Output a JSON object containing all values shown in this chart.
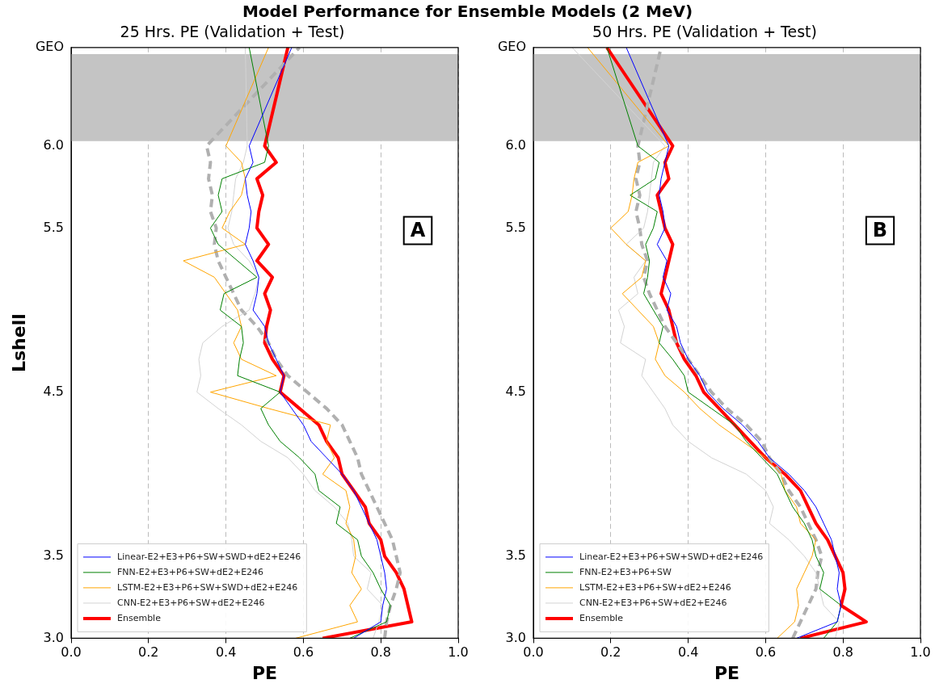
{
  "chart_data": [
    {
      "type": "line",
      "title": "Model Performance for Ensemble Models (2 MeV)",
      "subtitle": "25 Hrs. PE (Validation + Test)",
      "xlabel": "PE",
      "ylabel": "Lshell",
      "annotations": [
        "A"
      ],
      "xlim": [
        0,
        1
      ],
      "xticks": [
        {
          "value": 0,
          "label": "0.0"
        },
        {
          "value": 0.2,
          "label": "0.2"
        },
        {
          "value": 0.4,
          "label": "0.4"
        },
        {
          "value": 0.6,
          "label": "0.6"
        },
        {
          "value": 0.8,
          "label": "0.8"
        },
        {
          "value": 1,
          "label": "1.0"
        }
      ],
      "ylim": [
        3,
        6.6
      ],
      "yticks": [
        {
          "value": 3,
          "label": "3.0"
        },
        3.5,
        4.5,
        5.5,
        {
          "value": 6,
          "label": "6.0"
        },
        {
          "value": 6.6,
          "label": "GEO"
        }
      ],
      "grid": "x",
      "legend": "bottom left",
      "marker": "none",
      "bands": [
        {
          "axis": "y",
          "from": 6.03,
          "to": 6.56,
          "color": "#c4c4c4"
        }
      ],
      "series": [
        {
          "name": "Linear-E2+E3+P6+SW+SWD+dE2+E246",
          "color": "#0000ff",
          "x": [
            0.73,
            0.8,
            0.805,
            0.815,
            0.81,
            0.8,
            0.79,
            0.77,
            0.75,
            0.73,
            0.7,
            0.66,
            0.62,
            0.6,
            0.57,
            0.54,
            0.55,
            0.53,
            0.51,
            0.5,
            0.47,
            0.48,
            0.485,
            0.47,
            0.45,
            0.46,
            0.465,
            0.455,
            0.45,
            0.47,
            0.46,
            0.57
          ],
          "values": [
            3,
            3.1,
            3.2,
            3.3,
            3.4,
            3.5,
            3.6,
            3.7,
            3.8,
            3.9,
            4,
            4.1,
            4.2,
            4.3,
            4.4,
            4.5,
            4.6,
            4.7,
            4.8,
            4.9,
            5,
            5.1,
            5.2,
            5.3,
            5.4,
            5.5,
            5.6,
            5.7,
            5.8,
            5.9,
            6,
            6.6
          ]
        },
        {
          "name": "FNN-E2+E3+P6+SW+dE2+E246",
          "color": "#008000",
          "x": [
            0.72,
            0.815,
            0.825,
            0.8,
            0.78,
            0.75,
            0.74,
            0.685,
            0.695,
            0.64,
            0.63,
            0.59,
            0.54,
            0.51,
            0.49,
            0.54,
            0.43,
            0.435,
            0.445,
            0.44,
            0.385,
            0.395,
            0.48,
            0.43,
            0.38,
            0.36,
            0.39,
            0.38,
            0.39,
            0.5,
            0.51,
            0.46
          ],
          "values": [
            3,
            3.1,
            3.2,
            3.3,
            3.4,
            3.5,
            3.6,
            3.7,
            3.8,
            3.9,
            4,
            4.1,
            4.2,
            4.3,
            4.4,
            4.5,
            4.6,
            4.7,
            4.8,
            4.9,
            5,
            5.1,
            5.2,
            5.3,
            5.4,
            5.5,
            5.6,
            5.7,
            5.8,
            5.9,
            6,
            6.6
          ]
        },
        {
          "name": "LSTM-E2+E3+P6+SW+SWD+dE2+E246",
          "color": "#ffa500",
          "x": [
            0.58,
            0.74,
            0.72,
            0.75,
            0.725,
            0.735,
            0.73,
            0.71,
            0.72,
            0.71,
            0.65,
            0.68,
            0.66,
            0.67,
            0.51,
            0.36,
            0.53,
            0.44,
            0.42,
            0.44,
            0.43,
            0.4,
            0.37,
            0.29,
            0.45,
            0.39,
            0.41,
            0.44,
            0.45,
            0.44,
            0.4,
            0.51
          ],
          "values": [
            3,
            3.1,
            3.2,
            3.3,
            3.4,
            3.5,
            3.6,
            3.7,
            3.8,
            3.9,
            4,
            4.1,
            4.2,
            4.3,
            4.4,
            4.5,
            4.6,
            4.7,
            4.8,
            4.9,
            5,
            5.1,
            5.2,
            5.3,
            5.4,
            5.5,
            5.6,
            5.7,
            5.8,
            5.9,
            6,
            6.6
          ]
        },
        {
          "name": "CNN-E2+E3+P6+SW+dE2+E246",
          "color": "#d3d3d3",
          "x": [
            0.78,
            0.795,
            0.805,
            0.765,
            0.775,
            0.73,
            0.725,
            0.715,
            0.68,
            0.63,
            0.6,
            0.56,
            0.49,
            0.44,
            0.38,
            0.325,
            0.335,
            0.33,
            0.34,
            0.39,
            0.46,
            0.475,
            0.485,
            0.46,
            0.42,
            0.405,
            0.415,
            0.42,
            0.425,
            0.445,
            0.455,
            0.45
          ],
          "values": [
            3,
            3.1,
            3.2,
            3.3,
            3.4,
            3.5,
            3.6,
            3.7,
            3.8,
            3.9,
            4,
            4.1,
            4.2,
            4.3,
            4.4,
            4.5,
            4.6,
            4.7,
            4.8,
            4.9,
            5,
            5.1,
            5.2,
            5.3,
            5.4,
            5.5,
            5.6,
            5.7,
            5.8,
            5.9,
            6,
            6.6
          ]
        },
        {
          "color": "#b0b0b0",
          "line_style": "dashed",
          "x": [
            0.81,
            0.815,
            0.825,
            0.84,
            0.85,
            0.84,
            0.83,
            0.81,
            0.79,
            0.77,
            0.75,
            0.74,
            0.72,
            0.7,
            0.66,
            0.61,
            0.56,
            0.53,
            0.51,
            0.48,
            0.44,
            0.42,
            0.4,
            0.38,
            0.37,
            0.375,
            0.36,
            0.365,
            0.355,
            0.36,
            0.35,
            0.59
          ],
          "values": [
            3,
            3.1,
            3.2,
            3.3,
            3.4,
            3.5,
            3.6,
            3.7,
            3.8,
            3.9,
            4,
            4.1,
            4.2,
            4.3,
            4.4,
            4.5,
            4.6,
            4.7,
            4.8,
            4.9,
            5,
            5.1,
            5.2,
            5.3,
            5.4,
            5.5,
            5.6,
            5.7,
            5.8,
            5.9,
            6,
            6.6
          ]
        },
        {
          "name": "Ensemble",
          "color": "#ff0000",
          "x": [
            0.65,
            0.88,
            0.87,
            0.86,
            0.84,
            0.81,
            0.8,
            0.77,
            0.76,
            0.73,
            0.7,
            0.69,
            0.66,
            0.64,
            0.59,
            0.54,
            0.55,
            0.52,
            0.5,
            0.505,
            0.515,
            0.5,
            0.52,
            0.48,
            0.51,
            0.48,
            0.485,
            0.495,
            0.48,
            0.53,
            0.5,
            0.56
          ],
          "values": [
            3,
            3.1,
            3.2,
            3.3,
            3.4,
            3.5,
            3.6,
            3.7,
            3.8,
            3.9,
            4,
            4.1,
            4.2,
            4.3,
            4.4,
            4.5,
            4.6,
            4.7,
            4.8,
            4.9,
            5,
            5.1,
            5.2,
            5.3,
            5.4,
            5.5,
            5.6,
            5.7,
            5.8,
            5.9,
            6,
            6.6
          ]
        }
      ]
    },
    {
      "type": "line",
      "subtitle": "50 Hrs. PE (Validation + Test)",
      "xlabel": "PE",
      "annotations": [
        "B"
      ],
      "xlim": [
        0,
        1
      ],
      "xticks": [
        {
          "value": 0,
          "label": "0.0"
        },
        {
          "value": 0.2,
          "label": "0.2"
        },
        {
          "value": 0.4,
          "label": "0.4"
        },
        {
          "value": 0.6,
          "label": "0.6"
        },
        {
          "value": 0.8,
          "label": "0.8"
        },
        {
          "value": 1,
          "label": "1.0"
        }
      ],
      "ylim": [
        3,
        6.6
      ],
      "yticks": [
        {
          "value": 3,
          "label": "3.0"
        },
        3.5,
        4.5,
        5.5,
        {
          "value": 6,
          "label": "6.0"
        },
        {
          "value": 6.6,
          "label": "GEO"
        }
      ],
      "grid": "x",
      "legend": "bottom left",
      "marker": "none",
      "bands": [
        {
          "axis": "y",
          "from": 6.03,
          "to": 6.56,
          "color": "#c4c4c4"
        }
      ],
      "series": [
        {
          "name": "Linear-E2+E3+P6+SW+SWD+dE2+E246",
          "color": "#0000ff",
          "x": [
            0.68,
            0.785,
            0.795,
            0.785,
            0.79,
            0.78,
            0.77,
            0.75,
            0.73,
            0.7,
            0.66,
            0.61,
            0.58,
            0.54,
            0.49,
            0.45,
            0.43,
            0.4,
            0.38,
            0.37,
            0.345,
            0.355,
            0.335,
            0.345,
            0.32,
            0.34,
            0.335,
            0.325,
            0.33,
            0.34,
            0.35,
            0.24
          ],
          "values": [
            3,
            3.1,
            3.2,
            3.3,
            3.4,
            3.5,
            3.6,
            3.7,
            3.8,
            3.9,
            4,
            4.1,
            4.2,
            4.3,
            4.4,
            4.5,
            4.6,
            4.7,
            4.8,
            4.9,
            5,
            5.1,
            5.2,
            5.3,
            5.4,
            5.5,
            5.6,
            5.7,
            5.8,
            5.9,
            6,
            6.6
          ]
        },
        {
          "name": "FNN-E2+E3+P6+SW",
          "color": "#008000",
          "x": [
            0.75,
            0.785,
            0.795,
            0.74,
            0.75,
            0.73,
            0.72,
            0.7,
            0.67,
            0.65,
            0.63,
            0.59,
            0.55,
            0.52,
            0.46,
            0.4,
            0.39,
            0.36,
            0.325,
            0.335,
            0.31,
            0.285,
            0.295,
            0.3,
            0.29,
            0.31,
            0.32,
            0.25,
            0.315,
            0.325,
            0.27,
            0.19
          ],
          "values": [
            3,
            3.1,
            3.2,
            3.3,
            3.4,
            3.5,
            3.6,
            3.7,
            3.8,
            3.9,
            4,
            4.1,
            4.2,
            4.3,
            4.4,
            4.5,
            4.6,
            4.7,
            4.8,
            4.9,
            5,
            5.1,
            5.2,
            5.3,
            5.4,
            5.5,
            5.6,
            5.7,
            5.8,
            5.9,
            6,
            6.6
          ]
        },
        {
          "name": "LSTM-E2+E3+P6+SW+dE2+E246",
          "color": "#ffa500",
          "x": [
            0.63,
            0.675,
            0.685,
            0.68,
            0.7,
            0.72,
            0.73,
            0.69,
            0.68,
            0.65,
            0.64,
            0.6,
            0.54,
            0.48,
            0.43,
            0.39,
            0.34,
            0.315,
            0.325,
            0.31,
            0.27,
            0.23,
            0.28,
            0.29,
            0.24,
            0.2,
            0.245,
            0.255,
            0.26,
            0.27,
            0.35,
            0.14
          ],
          "values": [
            3,
            3.1,
            3.2,
            3.3,
            3.4,
            3.5,
            3.6,
            3.7,
            3.8,
            3.9,
            4,
            4.1,
            4.2,
            4.3,
            4.4,
            4.5,
            4.6,
            4.7,
            4.8,
            4.9,
            5,
            5.1,
            5.2,
            5.3,
            5.4,
            5.5,
            5.6,
            5.7,
            5.8,
            5.9,
            6,
            6.6
          ]
        },
        {
          "name": "CNN-E2+E3+P6+SW+dE2+E246",
          "color": "#d3d3d3",
          "x": [
            0.78,
            0.79,
            0.75,
            0.74,
            0.73,
            0.7,
            0.66,
            0.61,
            0.62,
            0.6,
            0.55,
            0.46,
            0.4,
            0.36,
            0.34,
            0.31,
            0.28,
            0.29,
            0.225,
            0.235,
            0.22,
            0.27,
            0.26,
            0.29,
            0.24,
            0.285,
            0.295,
            0.3,
            0.305,
            0.31,
            0.34,
            0.1
          ],
          "values": [
            3,
            3.1,
            3.2,
            3.3,
            3.4,
            3.5,
            3.6,
            3.7,
            3.8,
            3.9,
            4,
            4.1,
            4.2,
            4.3,
            4.4,
            4.5,
            4.6,
            4.7,
            4.8,
            4.9,
            5,
            5.1,
            5.2,
            5.3,
            5.4,
            5.5,
            5.6,
            5.7,
            5.8,
            5.9,
            6,
            6.6
          ]
        },
        {
          "color": "#b0b0b0",
          "line_style": "dashed",
          "x": [
            0.67,
            0.69,
            0.71,
            0.73,
            0.735,
            0.745,
            0.73,
            0.71,
            0.69,
            0.66,
            0.64,
            0.61,
            0.59,
            0.55,
            0.5,
            0.46,
            0.43,
            0.4,
            0.37,
            0.34,
            0.32,
            0.3,
            0.285,
            0.295,
            0.28,
            0.275,
            0.265,
            0.275,
            0.265,
            0.275,
            0.27,
            0.33
          ],
          "values": [
            3,
            3.1,
            3.2,
            3.3,
            3.4,
            3.5,
            3.6,
            3.7,
            3.8,
            3.9,
            4,
            4.1,
            4.2,
            4.3,
            4.4,
            4.5,
            4.6,
            4.7,
            4.8,
            4.9,
            5,
            5.1,
            5.2,
            5.3,
            5.4,
            5.5,
            5.6,
            5.7,
            5.8,
            5.9,
            6,
            6.6
          ]
        },
        {
          "name": "Ensemble",
          "color": "#ff0000",
          "x": [
            0.69,
            0.86,
            0.795,
            0.805,
            0.8,
            0.78,
            0.76,
            0.73,
            0.71,
            0.69,
            0.65,
            0.6,
            0.56,
            0.52,
            0.48,
            0.44,
            0.42,
            0.39,
            0.37,
            0.36,
            0.35,
            0.33,
            0.34,
            0.35,
            0.36,
            0.34,
            0.33,
            0.32,
            0.35,
            0.34,
            0.36,
            0.19
          ],
          "values": [
            3,
            3.1,
            3.2,
            3.3,
            3.4,
            3.5,
            3.6,
            3.7,
            3.8,
            3.9,
            4,
            4.1,
            4.2,
            4.3,
            4.4,
            4.5,
            4.6,
            4.7,
            4.8,
            4.9,
            5,
            5.1,
            5.2,
            5.3,
            5.4,
            5.5,
            5.6,
            5.7,
            5.8,
            5.9,
            6,
            6.6
          ]
        }
      ]
    }
  ]
}
